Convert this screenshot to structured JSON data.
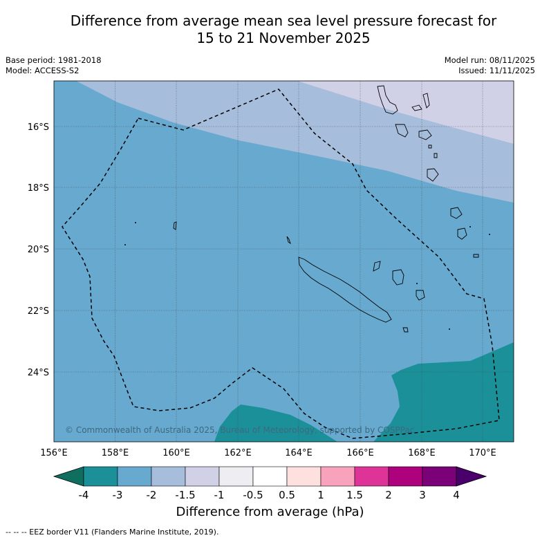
{
  "header": {
    "title_line1": "Difference from average mean sea level pressure forecast for",
    "title_line2": "15 to 21 November 2025",
    "base_period": "Base period: 1981-2018",
    "model": "Model: ACCESS-S2",
    "model_run": "Model run: 08/11/2025",
    "issued": "Issued: 11/11/2025"
  },
  "map": {
    "lon_range": [
      156,
      171
    ],
    "lat_range": [
      -26.0,
      -14.2
    ],
    "lon_ticks": [
      "156°E",
      "158°E",
      "160°E",
      "162°E",
      "164°E",
      "166°E",
      "168°E",
      "170°E"
    ],
    "lat_ticks": [
      "16°S",
      "18°S",
      "20°S",
      "22°S",
      "24°S"
    ],
    "copyright": "© Commonwealth of Australia 2025, Bureau of Meteorology, supported by COSPPac",
    "colors": {
      "band_-4_-3": "#1b9098",
      "band_-3_-2": "#67a9cf",
      "band_-2_-1.5": "#a6bddb",
      "band_-1.5_-1": "#d0d1e6",
      "coast": "#000000"
    }
  },
  "colorbar": {
    "title": "Difference from average (hPa)",
    "tick_labels": [
      "-4",
      "-3",
      "-2",
      "-1.5",
      "-1",
      "-0.5",
      "0.5",
      "1",
      "1.5",
      "2",
      "3",
      "4"
    ],
    "colors": [
      "#1b9098",
      "#67a9cf",
      "#a6bddb",
      "#d0d1e6",
      "#ededf2",
      "#ffffff",
      "#fee0df",
      "#f8a2bc",
      "#de3497",
      "#ae017e",
      "#7a0177"
    ],
    "under_color": "#0f6e5e",
    "over_color": "#49006a"
  },
  "footnote": "--  --  -- EEZ border V11 (Flanders Marine Institute, 2019)."
}
